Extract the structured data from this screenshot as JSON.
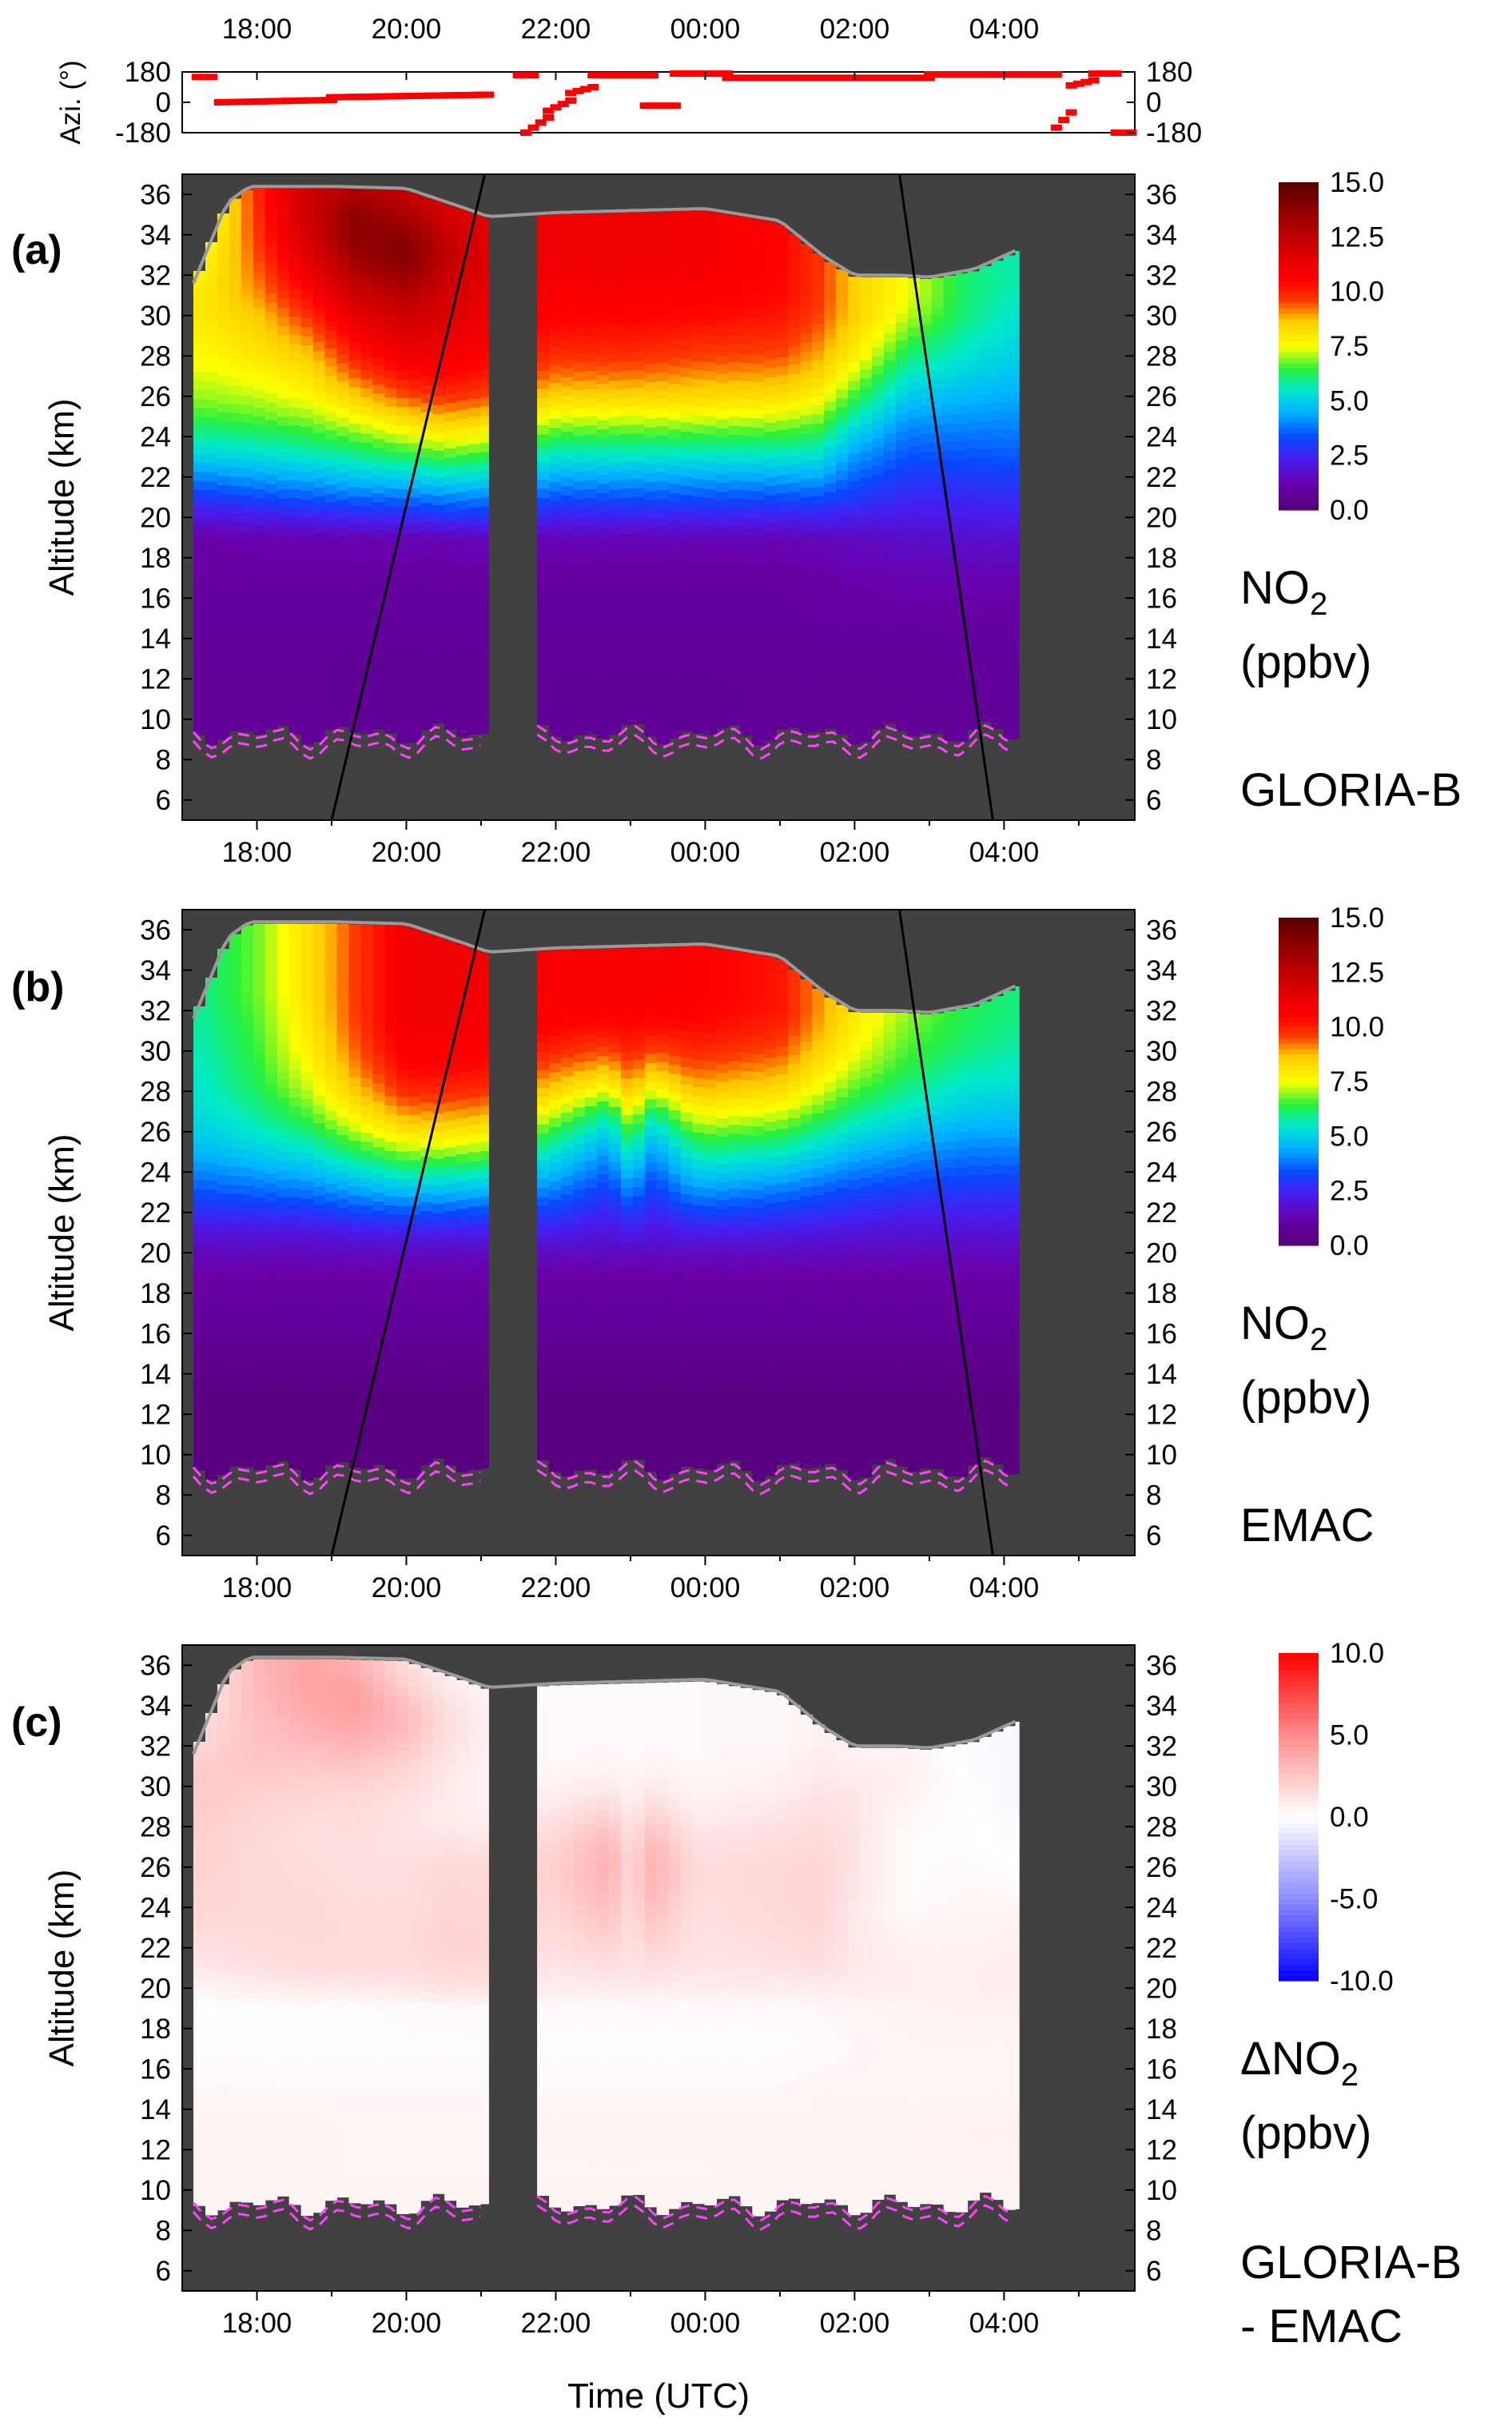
{
  "chart_data": [
    {
      "type": "scatter",
      "panel": "azimuth",
      "ylabel": "Azi. (°)",
      "ylim": [
        -180,
        180
      ],
      "yticks": [
        "180",
        "0",
        "-180"
      ],
      "xticks": [
        "18:00",
        "20:00",
        "22:00",
        "00:00",
        "02:00",
        "04:00"
      ],
      "segments": [
        {
          "t0": 17.2,
          "t1": 17.4,
          "v0": 150,
          "v1": 150
        },
        {
          "t0": 17.5,
          "t1": 19.0,
          "v0": 0,
          "v1": 14
        },
        {
          "t0": 19.0,
          "t1": 21.1,
          "v0": 30,
          "v1": 45
        },
        {
          "t0": 21.5,
          "t1": 21.7,
          "v0": 160,
          "v1": 160
        },
        {
          "t0": 21.6,
          "t1": 21.9,
          "v0": -180,
          "v1": -90
        },
        {
          "t0": 21.9,
          "t1": 22.2,
          "v0": -50,
          "v1": 10
        },
        {
          "t0": 22.2,
          "t1": 22.5,
          "v0": 55,
          "v1": 90
        },
        {
          "t0": 22.5,
          "t1": 23.3,
          "v0": 160,
          "v1": 160
        },
        {
          "t0": 23.2,
          "t1": 23.6,
          "v0": -20,
          "v1": -20
        },
        {
          "t0": 23.6,
          "t1": 24.3,
          "v0": 170,
          "v1": 170
        },
        {
          "t0": 24.3,
          "t1": 27.0,
          "v0": 145,
          "v1": 145
        },
        {
          "t0": 27.0,
          "t1": 28.7,
          "v0": 165,
          "v1": 165
        },
        {
          "t0": 28.7,
          "t1": 28.9,
          "v0": -150,
          "v1": -60
        },
        {
          "t0": 28.9,
          "t1": 29.2,
          "v0": 100,
          "v1": 130
        },
        {
          "t0": 29.2,
          "t1": 29.5,
          "v0": 170,
          "v1": 170
        },
        {
          "t0": 29.5,
          "t1": 29.7,
          "v0": -180,
          "v1": -180
        }
      ]
    },
    {
      "type": "heatmap",
      "panel": "a",
      "panel_label": "(a)",
      "variable": "NO2",
      "unit": "(ppbv)",
      "source": "GLORIA-B",
      "ylabel": "Altitude (km)",
      "ylim": [
        5,
        37
      ],
      "yticks": [
        "6",
        "8",
        "10",
        "12",
        "14",
        "16",
        "18",
        "20",
        "22",
        "24",
        "26",
        "28",
        "30",
        "32",
        "34",
        "36"
      ],
      "xticks": [
        "18:00",
        "20:00",
        "22:00",
        "00:00",
        "02:00",
        "04:00"
      ],
      "colorbar_ticks": [
        "15.0",
        "12.5",
        "10.0",
        "7.5",
        "5.0",
        "2.5",
        "0.0"
      ],
      "colorbar_range": [
        0,
        15
      ],
      "colorscale": "rainbow",
      "profile_times": [
        17.3,
        18.0,
        18.7,
        19.3,
        20.0,
        20.5,
        21.0,
        22.0,
        23.0,
        24.0,
        25.0,
        25.5,
        26.0,
        26.7,
        27.5,
        28.2
      ],
      "profile_alts": [
        9,
        11,
        13,
        15,
        17,
        19,
        20,
        21,
        22,
        23,
        24,
        25,
        26,
        27,
        28,
        29,
        30,
        31,
        32,
        33,
        34,
        35,
        36
      ],
      "profiles": [
        [
          0.8,
          0.8,
          0.8,
          0.9,
          1.0,
          1.2,
          2.0,
          3.0,
          4.0,
          5.0,
          5.8,
          6.5,
          7.0,
          7.3,
          7.6,
          7.8,
          8.0,
          8.0,
          7.8,
          7.6,
          7.3,
          7.0,
          6.8
        ],
        [
          0.8,
          0.8,
          0.8,
          0.9,
          1.0,
          1.3,
          2.2,
          3.3,
          4.3,
          5.2,
          6.0,
          6.7,
          7.2,
          7.6,
          8.0,
          8.3,
          8.6,
          9.0,
          9.3,
          9.5,
          9.7,
          9.8,
          9.9
        ],
        [
          0.8,
          0.8,
          0.8,
          0.9,
          1.0,
          1.3,
          2.4,
          3.5,
          4.5,
          5.5,
          6.3,
          7.0,
          7.6,
          8.1,
          8.6,
          9.2,
          9.8,
          10.4,
          11.0,
          11.6,
          12.0,
          12.2,
          12.2
        ],
        [
          0.8,
          0.7,
          0.7,
          0.9,
          1.0,
          1.3,
          2.5,
          3.7,
          4.8,
          5.8,
          6.7,
          7.6,
          8.5,
          9.3,
          10.0,
          10.6,
          11.3,
          12.0,
          12.8,
          13.4,
          13.8,
          13.7,
          13.0
        ],
        [
          0.8,
          0.7,
          0.7,
          0.9,
          1.0,
          1.4,
          2.6,
          3.8,
          5.0,
          6.2,
          7.3,
          8.4,
          9.5,
          10.3,
          11.0,
          11.6,
          12.2,
          12.8,
          13.5,
          14.0,
          13.8,
          13.0,
          12.5
        ],
        [
          0.8,
          0.7,
          0.7,
          0.9,
          1.0,
          1.4,
          2.8,
          4.0,
          5.3,
          6.5,
          7.7,
          8.8,
          9.8,
          10.4,
          10.9,
          11.3,
          11.7,
          12.0,
          12.4,
          12.6,
          12.4,
          12.0,
          11.8
        ],
        [
          0.8,
          0.7,
          0.7,
          0.9,
          1.0,
          1.5,
          2.8,
          4.0,
          5.2,
          6.4,
          7.5,
          8.6,
          9.6,
          10.2,
          10.6,
          10.9,
          11.2,
          11.4,
          11.6,
          11.7,
          11.6,
          11.4,
          11.2
        ],
        [
          0.8,
          0.7,
          0.8,
          0.9,
          1.0,
          1.4,
          2.4,
          3.4,
          4.4,
          5.4,
          6.4,
          7.4,
          8.4,
          9.2,
          9.8,
          10.2,
          10.5,
          10.7,
          10.9,
          11.0,
          11.0,
          11.0,
          11.0
        ],
        [
          0.8,
          0.7,
          0.8,
          0.9,
          1.0,
          1.4,
          2.4,
          3.4,
          4.4,
          5.4,
          6.4,
          7.4,
          8.4,
          9.2,
          9.8,
          10.2,
          10.5,
          10.7,
          10.9,
          11.0,
          11.0,
          11.0,
          11.0
        ],
        [
          0.8,
          0.7,
          0.8,
          0.9,
          1.0,
          1.4,
          2.4,
          3.4,
          4.4,
          5.4,
          6.4,
          7.4,
          8.3,
          9.0,
          9.6,
          10.0,
          10.4,
          10.6,
          10.8,
          10.9,
          10.9,
          10.9,
          10.9
        ],
        [
          0.8,
          0.8,
          0.8,
          0.9,
          1.0,
          1.4,
          2.4,
          3.4,
          4.4,
          5.4,
          6.4,
          7.3,
          8.2,
          8.9,
          9.5,
          9.9,
          10.2,
          10.4,
          10.5,
          10.5,
          10.5,
          10.5,
          10.5
        ],
        [
          0.8,
          0.8,
          0.8,
          1.0,
          1.1,
          1.5,
          2.4,
          3.4,
          4.4,
          5.3,
          6.2,
          7.0,
          7.8,
          8.4,
          8.9,
          9.3,
          9.6,
          9.8,
          9.8,
          9.8,
          9.8,
          9.8,
          9.8
        ],
        [
          0.8,
          0.8,
          0.8,
          1.0,
          1.2,
          1.6,
          2.3,
          3.0,
          3.6,
          4.2,
          4.9,
          5.7,
          6.5,
          7.2,
          7.8,
          8.2,
          8.5,
          8.5,
          8.5,
          8.5,
          8.5,
          8.5,
          8.5
        ],
        [
          0.8,
          0.8,
          0.8,
          1.0,
          1.3,
          1.7,
          2.2,
          2.6,
          3.0,
          3.4,
          3.8,
          4.3,
          4.9,
          5.5,
          6.1,
          6.7,
          7.2,
          7.5,
          7.5,
          7.5,
          7.5,
          7.5,
          7.5
        ],
        [
          0.8,
          0.8,
          0.9,
          1.0,
          1.3,
          1.8,
          2.2,
          2.6,
          3.0,
          3.4,
          3.8,
          4.2,
          4.6,
          5.0,
          5.4,
          5.7,
          6.0,
          6.1,
          6.1,
          6.1,
          6.1,
          6.1,
          6.1
        ],
        [
          0.8,
          0.8,
          0.9,
          1.0,
          1.3,
          1.8,
          2.3,
          2.7,
          3.1,
          3.5,
          3.8,
          4.1,
          4.4,
          4.7,
          5.0,
          5.2,
          5.4,
          5.6,
          5.7,
          5.7,
          5.7,
          5.7,
          5.7
        ]
      ]
    },
    {
      "type": "heatmap",
      "panel": "b",
      "panel_label": "(b)",
      "variable": "NO2",
      "unit": "(ppbv)",
      "source": "EMAC",
      "ylabel": "Altitude (km)",
      "ylim": [
        5,
        37
      ],
      "yticks": [
        "6",
        "8",
        "10",
        "12",
        "14",
        "16",
        "18",
        "20",
        "22",
        "24",
        "26",
        "28",
        "30",
        "32",
        "34",
        "36"
      ],
      "xticks": [
        "18:00",
        "20:00",
        "22:00",
        "00:00",
        "02:00",
        "04:00"
      ],
      "colorbar_ticks": [
        "15.0",
        "12.5",
        "10.0",
        "7.5",
        "5.0",
        "2.5",
        "0.0"
      ],
      "colorbar_range": [
        0,
        15
      ],
      "colorscale": "rainbow",
      "profile_times": [
        17.3,
        18.0,
        18.7,
        19.3,
        20.0,
        20.5,
        21.0,
        22.0,
        22.7,
        23.0,
        23.3,
        23.8,
        24.0,
        25.0,
        25.5,
        26.0,
        26.7,
        27.5,
        28.2
      ],
      "profile_alts": [
        9,
        11,
        13,
        15,
        17,
        19,
        20,
        21,
        22,
        23,
        24,
        25,
        26,
        27,
        28,
        29,
        30,
        31,
        32,
        33,
        34,
        35,
        36
      ],
      "profiles": [
        [
          0.3,
          0.3,
          0.3,
          0.6,
          0.9,
          1.2,
          1.5,
          2.0,
          2.7,
          3.4,
          4.0,
          4.6,
          5.0,
          5.3,
          5.5,
          5.6,
          5.7,
          5.8,
          5.9,
          6.0,
          6.0,
          6.0,
          6.0
        ],
        [
          0.3,
          0.3,
          0.3,
          0.6,
          0.9,
          1.2,
          1.5,
          2.0,
          2.8,
          3.6,
          4.3,
          5.0,
          5.5,
          5.9,
          6.2,
          6.4,
          6.5,
          6.6,
          6.7,
          6.8,
          6.8,
          6.8,
          6.8
        ],
        [
          0.3,
          0.3,
          0.3,
          0.6,
          0.9,
          1.2,
          1.5,
          2.0,
          2.9,
          3.8,
          4.6,
          5.4,
          6.1,
          6.7,
          7.2,
          7.5,
          7.8,
          8.0,
          8.1,
          8.2,
          8.2,
          8.2,
          8.2
        ],
        [
          0.3,
          0.3,
          0.3,
          0.6,
          0.9,
          1.2,
          1.6,
          2.2,
          3.2,
          4.2,
          5.2,
          6.2,
          7.1,
          7.9,
          8.5,
          9.0,
          9.3,
          9.5,
          9.6,
          9.6,
          9.6,
          9.6,
          9.6
        ],
        [
          0.3,
          0.3,
          0.3,
          0.6,
          0.9,
          1.2,
          1.6,
          2.3,
          3.4,
          4.6,
          5.8,
          7.0,
          8.1,
          9.1,
          9.9,
          10.4,
          10.7,
          10.9,
          11.0,
          11.0,
          11.0,
          11.0,
          11.0
        ],
        [
          0.3,
          0.3,
          0.3,
          0.6,
          0.9,
          1.2,
          1.6,
          2.3,
          3.4,
          4.6,
          5.8,
          7.0,
          8.1,
          9.1,
          9.9,
          10.4,
          10.7,
          10.9,
          11.0,
          11.0,
          11.0,
          11.0,
          11.0
        ],
        [
          0.3,
          0.3,
          0.3,
          0.6,
          0.9,
          1.2,
          1.6,
          2.3,
          3.3,
          4.5,
          5.7,
          6.9,
          8.0,
          9.0,
          9.8,
          10.3,
          10.6,
          10.8,
          10.9,
          10.9,
          10.9,
          10.9,
          10.9
        ],
        [
          0.3,
          0.3,
          0.3,
          0.6,
          0.9,
          1.2,
          1.6,
          2.3,
          3.0,
          3.8,
          4.6,
          5.4,
          6.3,
          7.3,
          8.3,
          9.2,
          9.9,
          10.4,
          10.7,
          10.8,
          10.8,
          10.8,
          10.8
        ],
        [
          0.3,
          0.3,
          0.3,
          0.6,
          0.9,
          1.2,
          1.6,
          2.0,
          2.5,
          3.0,
          3.6,
          4.2,
          5.0,
          6.0,
          7.3,
          8.5,
          9.5,
          10.2,
          10.6,
          10.8,
          10.8,
          10.8,
          10.8
        ],
        [
          0.3,
          0.3,
          0.3,
          0.6,
          0.9,
          1.2,
          1.6,
          2.3,
          3.1,
          4.0,
          4.8,
          5.7,
          6.6,
          7.6,
          8.6,
          9.4,
          10.0,
          10.4,
          10.7,
          10.8,
          10.8,
          10.8,
          10.8
        ],
        [
          0.3,
          0.3,
          0.3,
          0.6,
          0.9,
          1.2,
          1.6,
          2.0,
          2.5,
          3.0,
          3.6,
          4.2,
          5.0,
          6.0,
          7.3,
          8.5,
          9.5,
          10.2,
          10.6,
          10.8,
          10.8,
          10.8,
          10.8
        ],
        [
          0.3,
          0.3,
          0.3,
          0.6,
          0.9,
          1.2,
          1.6,
          2.3,
          3.1,
          4.0,
          4.8,
          5.6,
          6.5,
          7.5,
          8.5,
          9.3,
          9.9,
          10.3,
          10.6,
          10.7,
          10.7,
          10.7,
          10.7
        ],
        [
          0.3,
          0.3,
          0.3,
          0.6,
          0.9,
          1.2,
          1.6,
          2.3,
          3.2,
          4.1,
          5.0,
          5.9,
          6.8,
          7.7,
          8.6,
          9.3,
          9.9,
          10.3,
          10.5,
          10.6,
          10.6,
          10.6,
          10.6
        ],
        [
          0.3,
          0.3,
          0.3,
          0.6,
          0.9,
          1.2,
          1.6,
          2.2,
          3.0,
          3.8,
          4.7,
          5.6,
          6.5,
          7.4,
          8.2,
          8.9,
          9.5,
          9.9,
          10.2,
          10.2,
          10.2,
          10.2,
          10.2
        ],
        [
          0.3,
          0.3,
          0.3,
          0.6,
          0.9,
          1.2,
          1.6,
          2.1,
          2.8,
          3.5,
          4.3,
          5.1,
          5.9,
          6.7,
          7.4,
          8.0,
          8.5,
          8.9,
          9.1,
          9.1,
          9.1,
          9.1,
          9.1
        ],
        [
          0.3,
          0.3,
          0.3,
          0.6,
          0.9,
          1.2,
          1.5,
          2.0,
          2.6,
          3.2,
          3.9,
          4.6,
          5.3,
          6.0,
          6.6,
          7.1,
          7.5,
          7.8,
          8.0,
          8.0,
          8.0,
          8.0,
          8.0
        ],
        [
          0.3,
          0.3,
          0.3,
          0.6,
          0.9,
          1.2,
          1.5,
          1.9,
          2.4,
          3.0,
          3.6,
          4.2,
          4.8,
          5.4,
          5.9,
          6.3,
          6.6,
          6.8,
          7.0,
          7.0,
          7.0,
          7.0,
          7.0
        ],
        [
          0.3,
          0.3,
          0.3,
          0.6,
          0.9,
          1.2,
          1.5,
          1.9,
          2.4,
          2.9,
          3.4,
          3.9,
          4.4,
          4.9,
          5.3,
          5.7,
          6.0,
          6.2,
          6.3,
          6.3,
          6.3,
          6.3,
          6.3
        ],
        [
          0.3,
          0.3,
          0.3,
          0.6,
          0.9,
          1.2,
          1.5,
          1.9,
          2.4,
          2.9,
          3.4,
          3.9,
          4.4,
          4.8,
          5.2,
          5.5,
          5.7,
          5.9,
          6.0,
          6.0,
          6.0,
          6.0,
          6.0
        ]
      ]
    },
    {
      "type": "heatmap",
      "panel": "c",
      "panel_label": "(c)",
      "variable": "ΔNO",
      "variable_sub": "2",
      "unit": "(ppbv)",
      "source": "GLORIA-B",
      "source_line2": "- EMAC",
      "ylabel": "Altitude (km)",
      "xlabel": "Time (UTC)",
      "ylim": [
        5,
        37
      ],
      "yticks": [
        "6",
        "8",
        "10",
        "12",
        "14",
        "16",
        "18",
        "20",
        "22",
        "24",
        "26",
        "28",
        "30",
        "32",
        "34",
        "36"
      ],
      "xticks": [
        "18:00",
        "20:00",
        "22:00",
        "00:00",
        "02:00",
        "04:00"
      ],
      "colorbar_ticks": [
        "10.0",
        "5.0",
        "0.0",
        "-5.0",
        "-10.0"
      ],
      "colorbar_range": [
        -10,
        10
      ],
      "colorscale": "diverging"
    }
  ],
  "shared": {
    "no2_sub": "2",
    "no2_prefix": "NO",
    "background_color": "#414141",
    "tropopause_color": "#ff40ff",
    "ceiling_color": "#9a9a9a",
    "azimuth_color": "#ff0000"
  }
}
